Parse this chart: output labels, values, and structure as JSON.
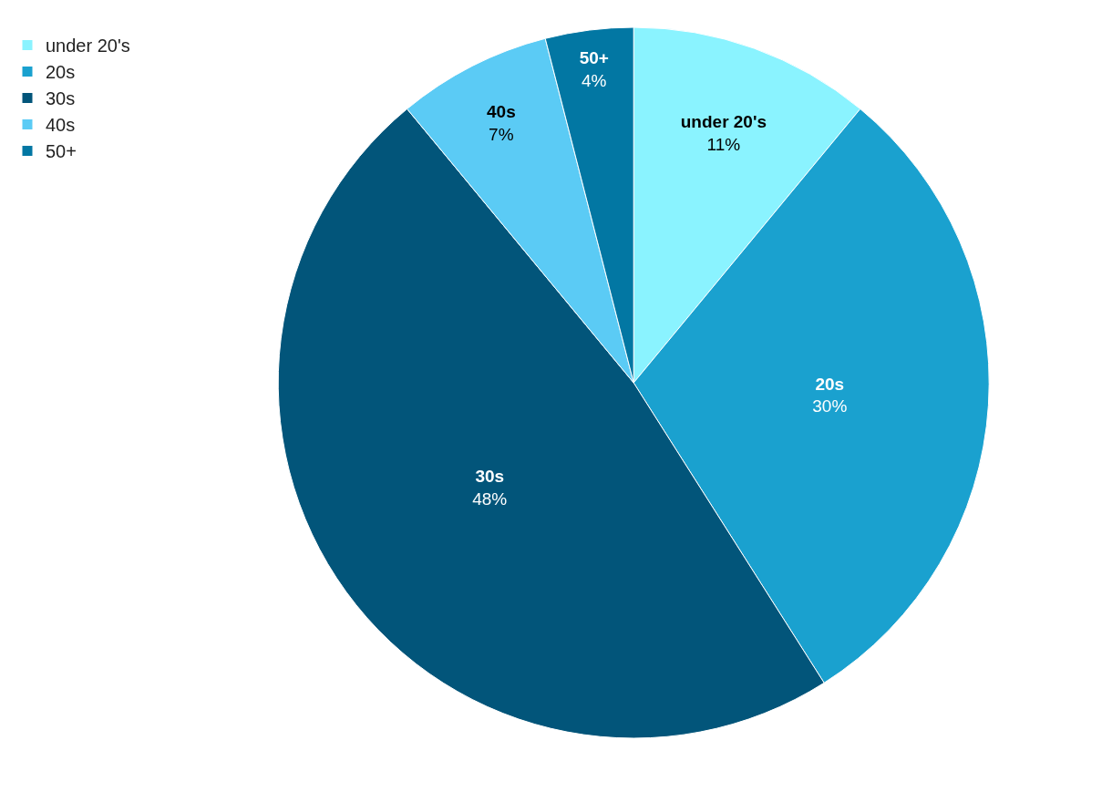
{
  "chart_data": {
    "type": "pie",
    "categories": [
      "under 20's",
      "20s",
      "30s",
      "40s",
      "50+"
    ],
    "values": [
      11,
      30,
      48,
      7,
      4
    ],
    "value_labels": [
      "11%",
      "30%",
      "48%",
      "7%",
      "4%"
    ],
    "colors": [
      "#8af3ff",
      "#1aa1cf",
      "#02557a",
      "#5bcbf5",
      "#0277a3"
    ],
    "legend": "top left"
  }
}
